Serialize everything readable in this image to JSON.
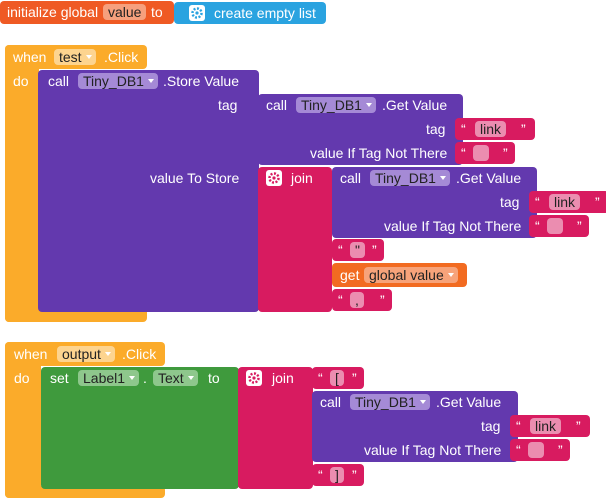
{
  "init": {
    "label": "initialize global",
    "name": "value",
    "to": "to",
    "value": "create empty list"
  },
  "quote": {
    "open": "“",
    "close": "”"
  },
  "handlers": [
    {
      "when": "when",
      "component": "test",
      "event": ".Click",
      "do": "do",
      "store": {
        "call": "call",
        "component": "Tiny_DB1",
        "method": ".Store Value",
        "tag": "tag",
        "value_to_store": "value To Store"
      },
      "get_1": {
        "call": "call",
        "component": "Tiny_DB1",
        "method": ".Get Value",
        "tag": "tag",
        "tag_value": "link",
        "default": "value If Tag Not There"
      },
      "join": "join",
      "get_2": {
        "call": "call",
        "component": "Tiny_DB1",
        "method": ".Get Value",
        "tag": "tag",
        "tag_value": "link",
        "default": "value If Tag Not There"
      },
      "text_1": "\"",
      "get_global": {
        "get": "get",
        "name": "global value"
      },
      "text_2": ","
    },
    {
      "when": "when",
      "component": "output",
      "event": ".Click",
      "do": "do",
      "set": {
        "set": "set",
        "component": "Label1",
        "dot": ".",
        "property": "Text",
        "to": "to"
      },
      "join": "join",
      "text_1": "[",
      "get": {
        "call": "call",
        "component": "Tiny_DB1",
        "method": ".Get Value",
        "tag": "tag",
        "tag_value": "link",
        "default": "value If Tag Not There"
      },
      "text_2": "]"
    }
  ]
}
